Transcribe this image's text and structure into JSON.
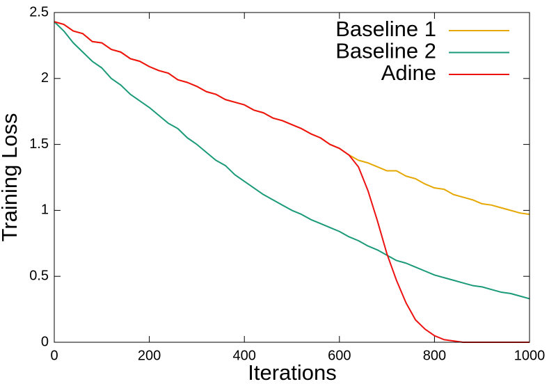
{
  "chart_data": {
    "type": "line",
    "xlabel": "Iterations",
    "ylabel": "Training Loss",
    "x": [
      0,
      20,
      40,
      60,
      80,
      100,
      120,
      140,
      160,
      180,
      200,
      220,
      240,
      260,
      280,
      300,
      320,
      340,
      360,
      380,
      400,
      420,
      440,
      460,
      480,
      500,
      520,
      540,
      560,
      580,
      600,
      620,
      640,
      660,
      680,
      700,
      720,
      740,
      760,
      780,
      800,
      820,
      840,
      860,
      880,
      900,
      920,
      940,
      960,
      980,
      1000
    ],
    "series": [
      {
        "name": "Baseline 1",
        "color": "#e6a800",
        "values": [
          2.43,
          2.41,
          2.36,
          2.34,
          2.28,
          2.27,
          2.22,
          2.2,
          2.15,
          2.13,
          2.09,
          2.06,
          2.04,
          1.99,
          1.97,
          1.94,
          1.9,
          1.88,
          1.84,
          1.82,
          1.8,
          1.76,
          1.74,
          1.7,
          1.68,
          1.65,
          1.62,
          1.58,
          1.55,
          1.5,
          1.47,
          1.42,
          1.38,
          1.36,
          1.33,
          1.3,
          1.3,
          1.26,
          1.24,
          1.2,
          1.17,
          1.16,
          1.12,
          1.1,
          1.08,
          1.05,
          1.04,
          1.02,
          1.0,
          0.98,
          0.97
        ]
      },
      {
        "name": "Baseline 2",
        "color": "#1a9a78",
        "values": [
          2.43,
          2.36,
          2.27,
          2.2,
          2.13,
          2.08,
          2.0,
          1.95,
          1.88,
          1.83,
          1.78,
          1.72,
          1.66,
          1.62,
          1.55,
          1.5,
          1.44,
          1.38,
          1.34,
          1.27,
          1.22,
          1.17,
          1.12,
          1.08,
          1.04,
          1.0,
          0.97,
          0.93,
          0.9,
          0.87,
          0.84,
          0.8,
          0.77,
          0.73,
          0.7,
          0.66,
          0.62,
          0.6,
          0.57,
          0.54,
          0.51,
          0.49,
          0.47,
          0.45,
          0.43,
          0.42,
          0.4,
          0.38,
          0.37,
          0.35,
          0.33
        ]
      },
      {
        "name": "Adine",
        "color": "#ee1111",
        "values": [
          2.43,
          2.41,
          2.36,
          2.34,
          2.28,
          2.27,
          2.22,
          2.2,
          2.15,
          2.13,
          2.09,
          2.06,
          2.04,
          1.99,
          1.97,
          1.94,
          1.9,
          1.88,
          1.84,
          1.82,
          1.8,
          1.76,
          1.74,
          1.7,
          1.68,
          1.65,
          1.62,
          1.58,
          1.55,
          1.5,
          1.47,
          1.42,
          1.33,
          1.15,
          0.92,
          0.67,
          0.47,
          0.3,
          0.17,
          0.1,
          0.05,
          0.02,
          0.01,
          0,
          0,
          0,
          0,
          0,
          0,
          0,
          0
        ]
      }
    ],
    "xlim": [
      0,
      1000
    ],
    "xticks": [
      0,
      200,
      400,
      600,
      800,
      1000
    ],
    "ylim": [
      0,
      2.5
    ],
    "yticks": [
      0,
      0.5,
      1,
      1.5,
      2,
      2.5
    ],
    "legend": "top-right"
  }
}
